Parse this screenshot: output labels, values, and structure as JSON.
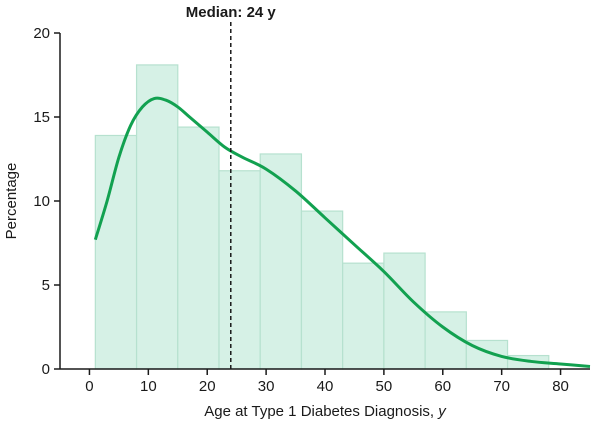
{
  "chart_data": {
    "type": "bar",
    "title": "",
    "xlabel": "Age at Type 1 Diabetes Diagnosis, ",
    "xlabel_italic": "y",
    "ylabel": "Percentage",
    "xlim": [
      -5,
      85
    ],
    "ylim": [
      0,
      20
    ],
    "xticks": [
      0,
      10,
      20,
      30,
      40,
      50,
      60,
      70,
      80
    ],
    "yticks": [
      0,
      5,
      10,
      15,
      20
    ],
    "grid": false,
    "bins": [
      {
        "x0": 1,
        "x1": 8,
        "value": 13.9
      },
      {
        "x0": 8,
        "x1": 15,
        "value": 18.1
      },
      {
        "x0": 15,
        "x1": 22,
        "value": 14.4
      },
      {
        "x0": 22,
        "x1": 29,
        "value": 11.8
      },
      {
        "x0": 29,
        "x1": 36,
        "value": 12.8
      },
      {
        "x0": 36,
        "x1": 43,
        "value": 9.4
      },
      {
        "x0": 43,
        "x1": 50,
        "value": 6.3
      },
      {
        "x0": 50,
        "x1": 57,
        "value": 6.9
      },
      {
        "x0": 57,
        "x1": 64,
        "value": 3.4
      },
      {
        "x0": 64,
        "x1": 71,
        "value": 1.7
      },
      {
        "x0": 71,
        "x1": 78,
        "value": 0.8
      }
    ],
    "density_curve": {
      "x": [
        1,
        3,
        5,
        7,
        9,
        11,
        13,
        15,
        17,
        20,
        23,
        26,
        30,
        35,
        40,
        45,
        50,
        55,
        60,
        65,
        70,
        75,
        80,
        85
      ],
      "y": [
        7.7,
        10.0,
        12.6,
        14.5,
        15.6,
        16.1,
        16.0,
        15.6,
        15.0,
        14.1,
        13.2,
        12.6,
        11.9,
        10.6,
        9.0,
        7.4,
        5.8,
        4.0,
        2.5,
        1.4,
        0.75,
        0.45,
        0.3,
        0.15
      ]
    },
    "median": {
      "x": 24,
      "label": "Median: 24 y"
    },
    "colors": {
      "bar_fill": "#d6f1e6",
      "bar_stroke": "#b6e1cf",
      "curve": "#12a150",
      "axis": "#1a1a1a",
      "median_line": "#1a1a1a"
    }
  }
}
